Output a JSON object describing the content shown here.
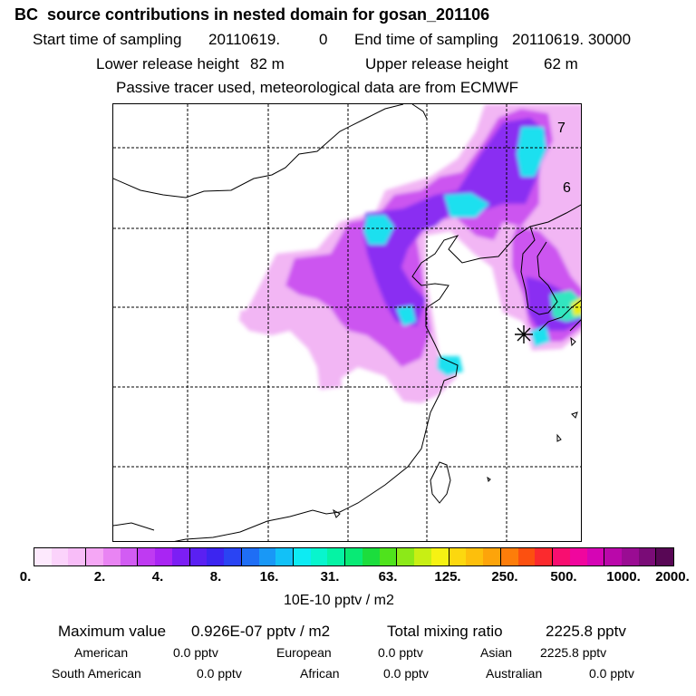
{
  "title": "BC  source contributions in nested domain for gosan_201106",
  "sampling": {
    "start_label": "Start time of sampling",
    "start_value": "20110619.",
    "start_extra": "0",
    "end_label": "End time of sampling",
    "end_value": "20110619. 30000"
  },
  "release": {
    "lower_label": "Lower release height",
    "lower_value": "82 m",
    "upper_label": "Upper release height",
    "upper_value": "62 m"
  },
  "tracer_note": "Passive tracer used, meteorological data are from ECMWF",
  "map": {
    "labels": {
      "seven": "7",
      "six": "6"
    }
  },
  "colorbar": {
    "colors": [
      "#fde9fd",
      "#fbd3fb",
      "#f8bdf8",
      "#f5a7f5",
      "#e984f3",
      "#d25cf3",
      "#bf3af2",
      "#a925f3",
      "#7c1ef4",
      "#5a20f2",
      "#3c25f0",
      "#2a44f3",
      "#1f6ef5",
      "#1998f6",
      "#12c1f7",
      "#0debf3",
      "#08f5cd",
      "#05f3a4",
      "#08ea75",
      "#1cdd3d",
      "#4fe31c",
      "#8ce918",
      "#c8ef14",
      "#f6f213",
      "#fcd80f",
      "#fdbf0c",
      "#fda40a",
      "#fd7d0a",
      "#fc5010",
      "#fb2a2e",
      "#f80e70",
      "#f0069e",
      "#d505b5",
      "#ba08aa",
      "#9a0c93",
      "#7a0c77",
      "#580755"
    ],
    "tick_labels": [
      "0.",
      "2.",
      "4.",
      "8.",
      "16.",
      "31.",
      "63.",
      "125.",
      "250.",
      "500.",
      "1000.",
      "2000."
    ],
    "units": "10E-10 pptv / m2"
  },
  "stats": {
    "max_label": "Maximum value",
    "max_value": "0.926E-07 pptv / m2",
    "total_label": "Total mixing ratio",
    "total_value": "2225.8 pptv"
  },
  "regions": [
    {
      "name": "American",
      "value": "0.0 pptv"
    },
    {
      "name": "European",
      "value": "0.0 pptv"
    },
    {
      "name": "Asian",
      "value": "2225.8 pptv"
    },
    {
      "name": "South American",
      "value": "0.0 pptv"
    },
    {
      "name": "African",
      "value": "0.0 pptv"
    },
    {
      "name": "Australian",
      "value": "0.0 pptv"
    }
  ]
}
